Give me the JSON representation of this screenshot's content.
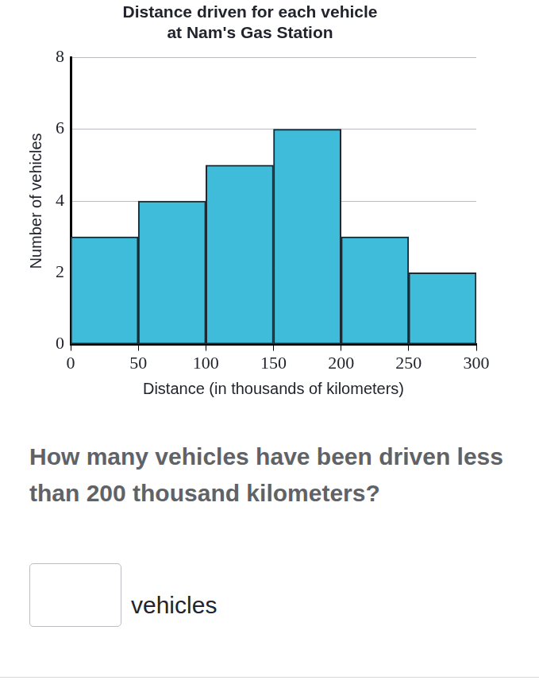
{
  "chart_data": {
    "type": "histogram",
    "title": [
      "Distance driven for each vehicle",
      "at Nam's Gas Station"
    ],
    "x_label": "Distance (in thousands of kilometers)",
    "y_label": "Number of vehicles",
    "bins": [
      0,
      50,
      100,
      150,
      200,
      250,
      300
    ],
    "values": [
      3,
      4,
      5,
      6,
      3,
      2
    ],
    "color": "#3fbcd9",
    "xlim": [
      0,
      300
    ],
    "xticks": [
      0,
      50,
      100,
      150,
      200,
      250,
      300
    ],
    "ylim": [
      0,
      8
    ],
    "yticks": [
      0,
      2,
      4,
      6,
      8
    ],
    "grid": true
  },
  "question": {
    "text": "How many vehicles have been driven less than 200 thousand kilometers?",
    "unit": "vehicles"
  }
}
